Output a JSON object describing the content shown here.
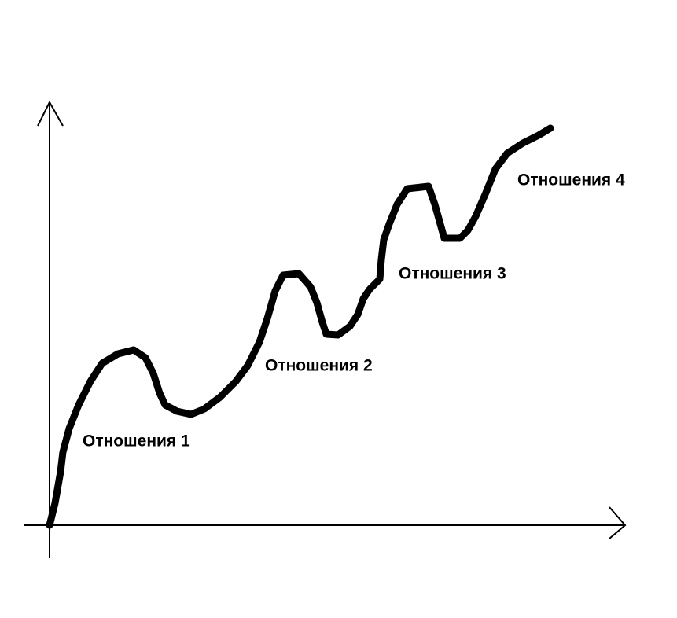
{
  "labels": [
    "Отношения 1",
    "Отношения 2",
    "Отношения 3",
    "Отношения 4"
  ]
}
